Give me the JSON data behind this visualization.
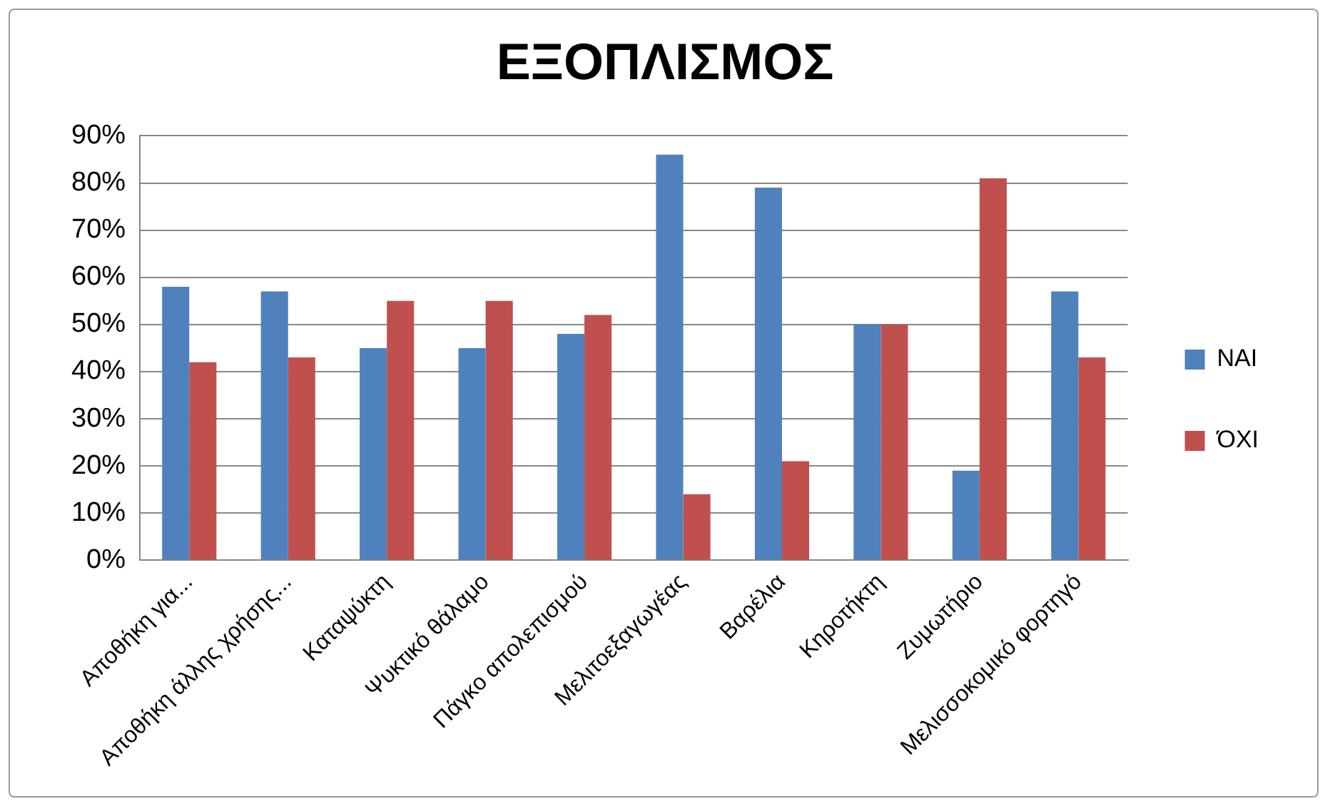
{
  "chart_data": {
    "type": "bar",
    "title": "ΕΞΟΠΛΙΣΜΟΣ",
    "categories": [
      "Αποθήκη για...",
      "Αποθήκη άλλης χρήσης...",
      "Καταψύκτη",
      "Ψυκτικό θάλαμο",
      "Πάγκο απολεπισμού",
      "Μελιτοεξαγωγέας",
      "Βαρέλια",
      "Κηροτήκτη",
      "Ζυμωτήριο",
      "Μελισσοκομικό φορτηγό"
    ],
    "series": [
      {
        "name": "ΝΑΙ",
        "color": "#4f81bd",
        "values": [
          58,
          57,
          45,
          45,
          48,
          86,
          79,
          50,
          19,
          57
        ]
      },
      {
        "name": "ΌΧΙ",
        "color": "#c0504d",
        "values": [
          42,
          43,
          55,
          55,
          52,
          14,
          21,
          50,
          81,
          43
        ]
      }
    ],
    "ylim": [
      0,
      90
    ],
    "yticks": [
      {
        "value": 0,
        "label": "0%"
      },
      {
        "value": 10,
        "label": "10%"
      },
      {
        "value": 20,
        "label": "20%"
      },
      {
        "value": 30,
        "label": "30%"
      },
      {
        "value": 40,
        "label": "40%"
      },
      {
        "value": 50,
        "label": "50%"
      },
      {
        "value": 60,
        "label": "60%"
      },
      {
        "value": 70,
        "label": "70%"
      },
      {
        "value": 80,
        "label": "80%"
      },
      {
        "value": 90,
        "label": "90%"
      }
    ],
    "grid": "y",
    "legend": "right"
  }
}
